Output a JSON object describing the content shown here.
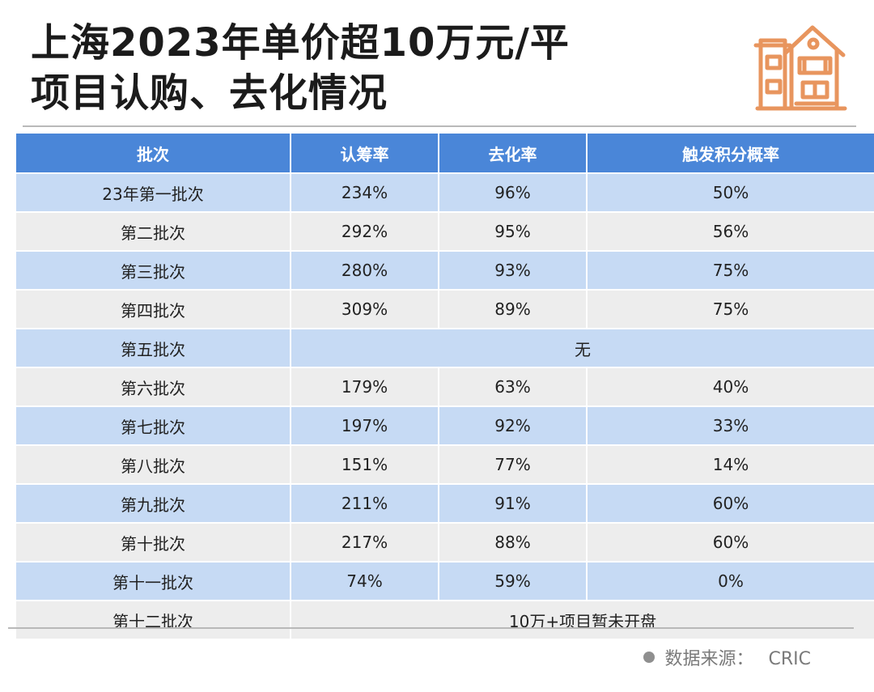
{
  "title": {
    "line1": "上海2023年单价超10万元/平",
    "line2": "项目认购、去化情况"
  },
  "icons": {
    "header": "house-icon",
    "source": "bullet-dot-icon"
  },
  "colors": {
    "header_bg": "#4a86d8",
    "row_blue": "#c6daf4",
    "row_gray": "#ededed",
    "icon": "#e8955e"
  },
  "table": {
    "headers": [
      "批次",
      "认筹率",
      "去化率",
      "触发积分概率"
    ],
    "rows": [
      {
        "batch": "23年第一批次",
        "subscription": "234%",
        "sellthrough": "96%",
        "points": "50%"
      },
      {
        "batch": "第二批次",
        "subscription": "292%",
        "sellthrough": "95%",
        "points": "56%"
      },
      {
        "batch": "第三批次",
        "subscription": "280%",
        "sellthrough": "93%",
        "points": "75%"
      },
      {
        "batch": "第四批次",
        "subscription": "309%",
        "sellthrough": "89%",
        "points": "75%"
      },
      {
        "batch": "第五批次",
        "note": "无"
      },
      {
        "batch": "第六批次",
        "subscription": "179%",
        "sellthrough": "63%",
        "points": "40%"
      },
      {
        "batch": "第七批次",
        "subscription": "197%",
        "sellthrough": "92%",
        "points": "33%"
      },
      {
        "batch": "第八批次",
        "subscription": "151%",
        "sellthrough": "77%",
        "points": "14%"
      },
      {
        "batch": "第九批次",
        "subscription": "211%",
        "sellthrough": "91%",
        "points": "60%"
      },
      {
        "batch": "第十批次",
        "subscription": "217%",
        "sellthrough": "88%",
        "points": "60%"
      },
      {
        "batch": "第十一批次",
        "subscription": "74%",
        "sellthrough": "59%",
        "points": "0%"
      },
      {
        "batch": "第十二批次",
        "note": "10万+项目暂未开盘"
      }
    ]
  },
  "source": {
    "label": "数据来源：",
    "value": "CRIC"
  }
}
